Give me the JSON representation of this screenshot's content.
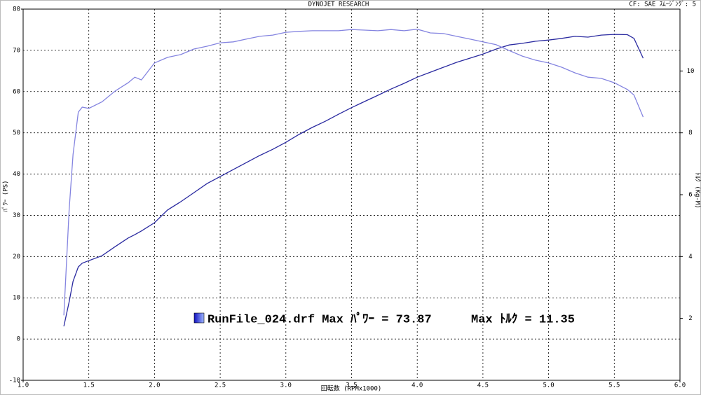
{
  "chart_data": {
    "type": "line",
    "title": "DYNOJET  RESEARCH",
    "subtitle": "CF: SAE  ｽﾑｰｼﾞﾝｸﾞ: 5",
    "x_label": "回転数 (RPMx1000)",
    "y_label": "ﾊﾟﾜｰ (PS)",
    "y2_label": "ﾄﾙｸ (Kg-M)",
    "annotations": [
      "RunFile_024.drf Max ﾊﾟﾜｰ = 73.87",
      "Max ﾄﾙｸ = 11.35"
    ],
    "grid": true,
    "xlim": [
      1,
      6
    ],
    "xticks": [
      {
        "value": 1,
        "label": "1.0"
      },
      1.5,
      {
        "value": 2,
        "label": "2.0"
      },
      2.5,
      {
        "value": 3,
        "label": "3.0"
      },
      3.5,
      {
        "value": 4,
        "label": "4.0"
      },
      4.5,
      {
        "value": 5,
        "label": "5.0"
      },
      5.5,
      {
        "value": 6,
        "label": "6.0"
      }
    ],
    "ylim": [
      -10,
      80
    ],
    "yticks": [
      -10,
      0,
      10,
      20,
      30,
      40,
      50,
      60,
      70,
      80
    ],
    "y2lim": [
      0,
      12
    ],
    "y2ticks": [
      2,
      4,
      6,
      8,
      10
    ],
    "x": [
      1.31,
      1.35,
      1.38,
      1.42,
      1.45,
      1.5,
      1.6,
      1.7,
      1.8,
      1.85,
      1.9,
      2.0,
      2.1,
      2.2,
      2.3,
      2.4,
      2.5,
      2.6,
      2.7,
      2.8,
      2.9,
      3.0,
      3.1,
      3.2,
      3.3,
      3.4,
      3.5,
      3.6,
      3.7,
      3.8,
      3.9,
      4.0,
      4.1,
      4.2,
      4.3,
      4.4,
      4.5,
      4.6,
      4.7,
      4.8,
      4.9,
      5.0,
      5.1,
      5.2,
      5.3,
      5.4,
      5.5,
      5.6,
      5.65,
      5.72
    ],
    "series": [
      {
        "color": "#2a2aa0",
        "values": [
          3.1,
          9.0,
          14.0,
          17.5,
          18.4,
          19.0,
          20.2,
          22.4,
          24.5,
          25.3,
          26.2,
          28.2,
          31.3,
          33.3,
          35.5,
          37.7,
          39.4,
          41.1,
          42.8,
          44.5,
          46.0,
          47.7,
          49.6,
          51.3,
          52.8,
          54.5,
          56.1,
          57.6,
          59.1,
          60.6,
          62.0,
          63.5,
          64.7,
          65.9,
          67.1,
          68.1,
          69.1,
          70.3,
          71.3,
          71.7,
          72.2,
          72.5,
          72.9,
          73.4,
          73.2,
          73.7,
          73.87,
          73.8,
          72.9,
          68.1
        ]
      },
      {
        "color": "#8484e0",
        "axis": "y2",
        "values": [
          2.1,
          5.5,
          7.3,
          8.67,
          8.83,
          8.79,
          9.0,
          9.35,
          9.62,
          9.8,
          9.71,
          10.26,
          10.44,
          10.53,
          10.71,
          10.8,
          10.91,
          10.94,
          11.03,
          11.12,
          11.16,
          11.25,
          11.28,
          11.3,
          11.3,
          11.3,
          11.34,
          11.32,
          11.3,
          11.34,
          11.3,
          11.35,
          11.23,
          11.21,
          11.12,
          11.03,
          10.94,
          10.85,
          10.66,
          10.48,
          10.35,
          10.26,
          10.12,
          9.94,
          9.8,
          9.76,
          9.62,
          9.4,
          9.22,
          8.51
        ]
      }
    ]
  }
}
